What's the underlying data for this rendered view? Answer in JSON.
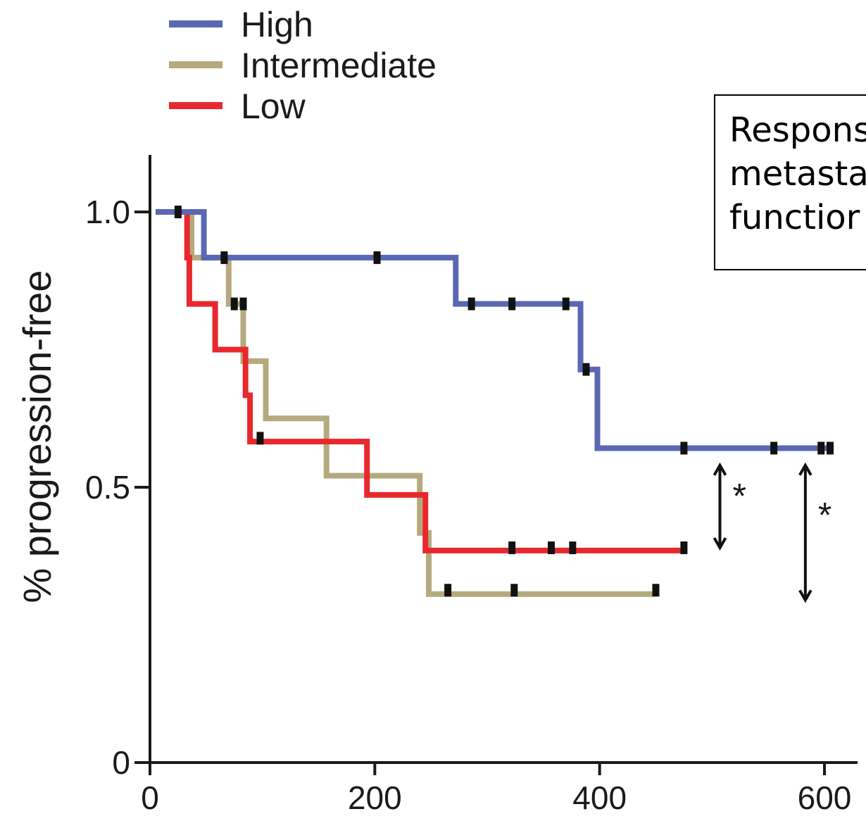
{
  "annotation": {
    "lines": [
      "Respons",
      "metasta",
      "functior"
    ]
  },
  "chart_data": {
    "type": "line",
    "step": true,
    "xlabel": "",
    "ylabel": "% progression-free",
    "xlim": [
      0,
      620
    ],
    "ylim": [
      0,
      1.0
    ],
    "x_ticks": [
      0,
      200,
      400,
      600
    ],
    "x_tick_labels": [
      "0",
      "200",
      "400",
      "600"
    ],
    "y_ticks": [
      0,
      0.5,
      1.0
    ],
    "y_tick_labels": [
      "0",
      "0.5",
      "1.0"
    ],
    "legend_position": "top-left",
    "series": [
      {
        "name": "High",
        "color": "#5a67b2",
        "steps": [
          [
            5,
            1.0
          ],
          [
            48,
            1.0
          ],
          [
            48,
            0.917
          ],
          [
            272,
            0.917
          ],
          [
            272,
            0.833
          ],
          [
            383,
            0.833
          ],
          [
            383,
            0.714
          ],
          [
            398,
            0.714
          ],
          [
            398,
            0.571
          ],
          [
            605,
            0.571
          ]
        ],
        "censored": [
          [
            25,
            1.0
          ],
          [
            66,
            0.917
          ],
          [
            202,
            0.917
          ],
          [
            286,
            0.833
          ],
          [
            322,
            0.833
          ],
          [
            370,
            0.833
          ],
          [
            388,
            0.714
          ],
          [
            475,
            0.571
          ],
          [
            555,
            0.571
          ],
          [
            597,
            0.571
          ],
          [
            605,
            0.571
          ]
        ]
      },
      {
        "name": "Intermediate",
        "color": "#b5aa7d",
        "steps": [
          [
            33,
            1.0
          ],
          [
            37,
            1.0
          ],
          [
            37,
            0.917
          ],
          [
            70,
            0.917
          ],
          [
            70,
            0.833
          ],
          [
            83,
            0.833
          ],
          [
            83,
            0.729
          ],
          [
            103,
            0.729
          ],
          [
            103,
            0.625
          ],
          [
            157,
            0.625
          ],
          [
            157,
            0.521
          ],
          [
            240,
            0.521
          ],
          [
            240,
            0.417
          ],
          [
            248,
            0.417
          ],
          [
            248,
            0.306
          ],
          [
            448,
            0.306
          ]
        ],
        "censored": [
          [
            75,
            0.833
          ],
          [
            83,
            0.833
          ],
          [
            265,
            0.313
          ],
          [
            324,
            0.313
          ],
          [
            450,
            0.313
          ]
        ]
      },
      {
        "name": "Low",
        "color": "#e8282c",
        "steps": [
          [
            33,
            1.0
          ],
          [
            33,
            0.917
          ],
          [
            35,
            0.917
          ],
          [
            35,
            0.833
          ],
          [
            58,
            0.833
          ],
          [
            58,
            0.75
          ],
          [
            85,
            0.75
          ],
          [
            85,
            0.667
          ],
          [
            89,
            0.667
          ],
          [
            89,
            0.583
          ],
          [
            193,
            0.583
          ],
          [
            193,
            0.486
          ],
          [
            245,
            0.486
          ],
          [
            245,
            0.385
          ],
          [
            475,
            0.385
          ]
        ],
        "censored": [
          [
            98,
            0.589
          ],
          [
            322,
            0.39
          ],
          [
            357,
            0.39
          ],
          [
            376,
            0.39
          ],
          [
            475,
            0.39
          ]
        ]
      }
    ],
    "annotations": [
      {
        "label": "*",
        "x": 507,
        "y_from": 0.54,
        "y_to": 0.39
      },
      {
        "label": "*",
        "x": 583,
        "y_from": 0.54,
        "y_to": 0.295
      }
    ]
  }
}
